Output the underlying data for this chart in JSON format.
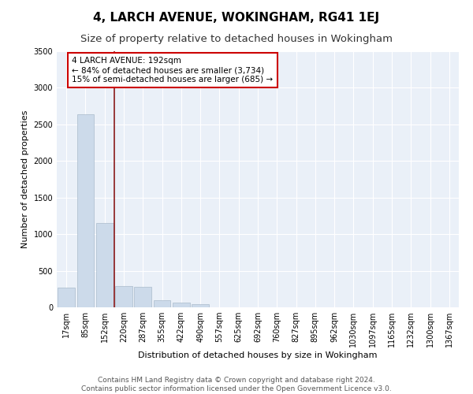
{
  "title": "4, LARCH AVENUE, WOKINGHAM, RG41 1EJ",
  "subtitle": "Size of property relative to detached houses in Wokingham",
  "xlabel": "Distribution of detached houses by size in Wokingham",
  "ylabel": "Number of detached properties",
  "bar_labels": [
    "17sqm",
    "85sqm",
    "152sqm",
    "220sqm",
    "287sqm",
    "355sqm",
    "422sqm",
    "490sqm",
    "557sqm",
    "625sqm",
    "692sqm",
    "760sqm",
    "827sqm",
    "895sqm",
    "962sqm",
    "1030sqm",
    "1097sqm",
    "1165sqm",
    "1232sqm",
    "1300sqm",
    "1367sqm"
  ],
  "bar_values": [
    270,
    2640,
    1150,
    290,
    285,
    95,
    60,
    40,
    0,
    0,
    0,
    0,
    0,
    0,
    0,
    0,
    0,
    0,
    0,
    0,
    0
  ],
  "bar_color": "#ccdaea",
  "bar_edge_color": "#aabbcc",
  "vline_color": "#8b1a1a",
  "annotation_text": "4 LARCH AVENUE: 192sqm\n← 84% of detached houses are smaller (3,734)\n15% of semi-detached houses are larger (685) →",
  "annotation_box_color": "#ffffff",
  "annotation_box_edge": "#cc0000",
  "ylim": [
    0,
    3500
  ],
  "yticks": [
    0,
    500,
    1000,
    1500,
    2000,
    2500,
    3000,
    3500
  ],
  "footer_line1": "Contains HM Land Registry data © Crown copyright and database right 2024.",
  "footer_line2": "Contains public sector information licensed under the Open Government Licence v3.0.",
  "plot_bg_color": "#eaf0f8",
  "title_fontsize": 11,
  "subtitle_fontsize": 9.5,
  "axis_label_fontsize": 8,
  "tick_fontsize": 7,
  "footer_fontsize": 6.5,
  "annotation_fontsize": 7.5
}
